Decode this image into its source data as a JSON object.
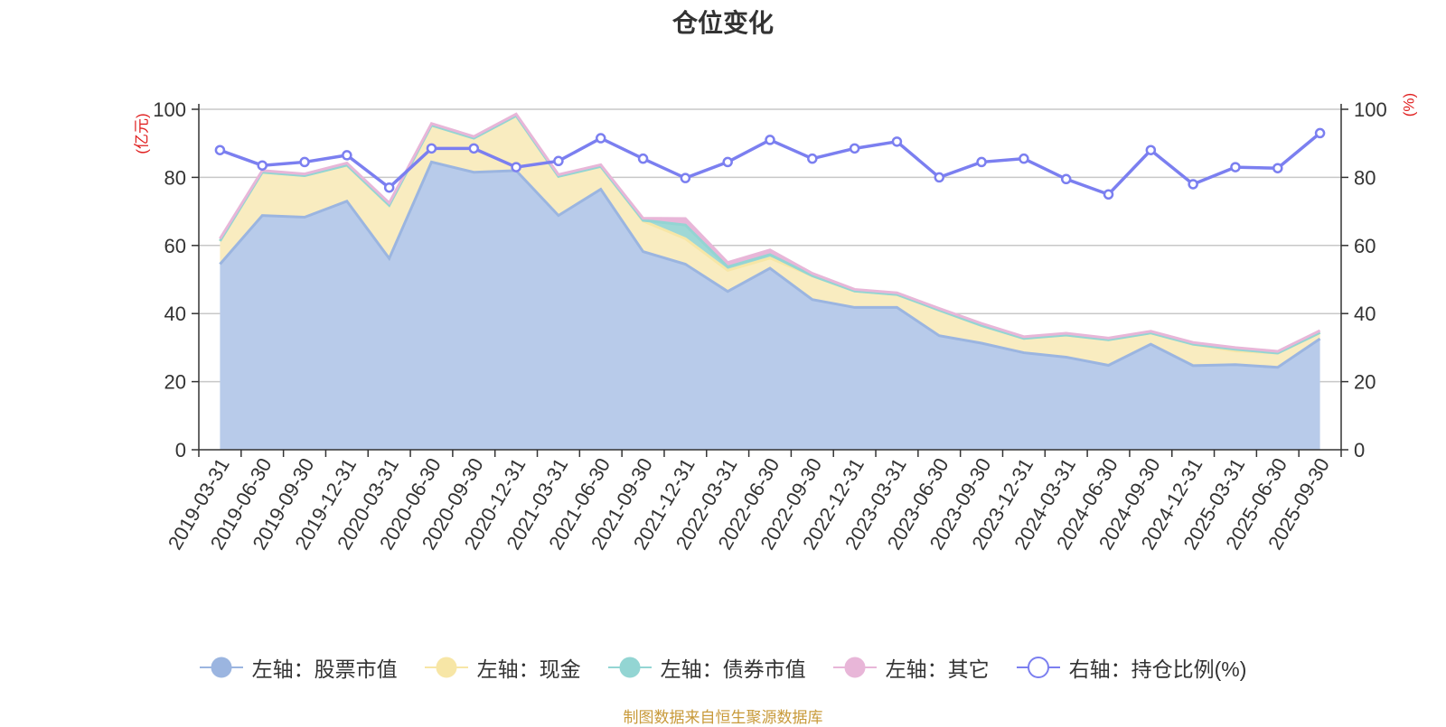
{
  "title": "仓位变化",
  "source": "制图数据来自恒生聚源数据库",
  "chart_data": {
    "type": "area",
    "x": [
      "2019-03-31",
      "2019-06-30",
      "2019-09-30",
      "2019-12-31",
      "2020-03-31",
      "2020-06-30",
      "2020-09-30",
      "2020-12-31",
      "2021-03-31",
      "2021-06-30",
      "2021-09-30",
      "2021-12-31",
      "2022-03-31",
      "2022-06-30",
      "2022-09-30",
      "2022-12-31",
      "2023-03-31",
      "2023-06-30",
      "2023-09-30",
      "2023-12-31",
      "2024-03-31",
      "2024-06-30",
      "2024-09-30",
      "2024-12-31",
      "2025-03-31",
      "2025-06-30",
      "2025-09-30"
    ],
    "left_axis": {
      "label": "(亿元)",
      "ylim": [
        0,
        100
      ],
      "ticks": [
        "0",
        "20",
        "40",
        "60",
        "80",
        "100"
      ]
    },
    "right_axis": {
      "label": "(%)",
      "ylim": [
        0,
        100
      ],
      "ticks": [
        "0",
        "20",
        "40",
        "60",
        "80",
        "100"
      ]
    },
    "series": [
      {
        "name": "左轴：股票市值",
        "axis": "left",
        "stack": true,
        "color": "#9bb5e0",
        "fill": "#b8cbea",
        "values": [
          54.5,
          68.8,
          68.3,
          73.0,
          56.2,
          84.5,
          81.5,
          82.0,
          68.8,
          76.5,
          58.2,
          54.5,
          46.5,
          53.3,
          44.1,
          41.8,
          41.8,
          33.5,
          31.3,
          28.5,
          27.2,
          24.8,
          31.0,
          24.7,
          25.0,
          24.2,
          32.6
        ]
      },
      {
        "name": "左轴：现金",
        "axis": "left",
        "stack": true,
        "color": "#f7e6a6",
        "fill": "#f9ecc0",
        "values": [
          6.8,
          12.7,
          12.2,
          10.6,
          15.6,
          10.8,
          10.0,
          16.1,
          11.5,
          6.7,
          9.0,
          7.5,
          6.2,
          3.0,
          7.0,
          4.8,
          3.8,
          7.5,
          5.2,
          4.2,
          6.5,
          7.5,
          3.3,
          6.3,
          4.0,
          4.2,
          1.8
        ]
      },
      {
        "name": "左轴：债券市值",
        "axis": "left",
        "stack": true,
        "color": "#93d5d3",
        "fill": "#9fd8d6",
        "values": [
          0,
          0,
          0,
          0,
          0,
          0,
          0,
          0,
          0,
          0,
          0.2,
          4.0,
          1.0,
          1.0,
          0,
          0,
          0,
          0,
          0,
          0,
          0,
          0,
          0,
          0,
          0.5,
          0,
          0
        ]
      },
      {
        "name": "左轴：其它",
        "axis": "left",
        "stack": true,
        "color": "#e8b6d8",
        "fill": "#e8b6d8",
        "values": [
          0.7,
          0.5,
          0.5,
          0.6,
          0.7,
          0.5,
          0.5,
          0.5,
          0.5,
          0.5,
          0.6,
          1.9,
          1.3,
          1.4,
          0.7,
          0.5,
          0.5,
          0.5,
          0.6,
          0.5,
          0.5,
          0.5,
          0.5,
          0.5,
          0.5,
          0.5,
          0.6
        ]
      },
      {
        "name": "右轴：持仓比例(%)",
        "axis": "right",
        "stack": false,
        "color": "#7b7ff0",
        "fill": "none",
        "values": [
          88.0,
          83.5,
          84.5,
          86.5,
          77.0,
          88.5,
          88.5,
          83.0,
          84.8,
          91.5,
          85.5,
          79.8,
          84.5,
          91.0,
          85.5,
          88.5,
          90.5,
          80.0,
          84.5,
          85.5,
          79.5,
          75.0,
          88.0,
          78.0,
          83.0,
          82.7,
          93.0
        ]
      }
    ]
  }
}
